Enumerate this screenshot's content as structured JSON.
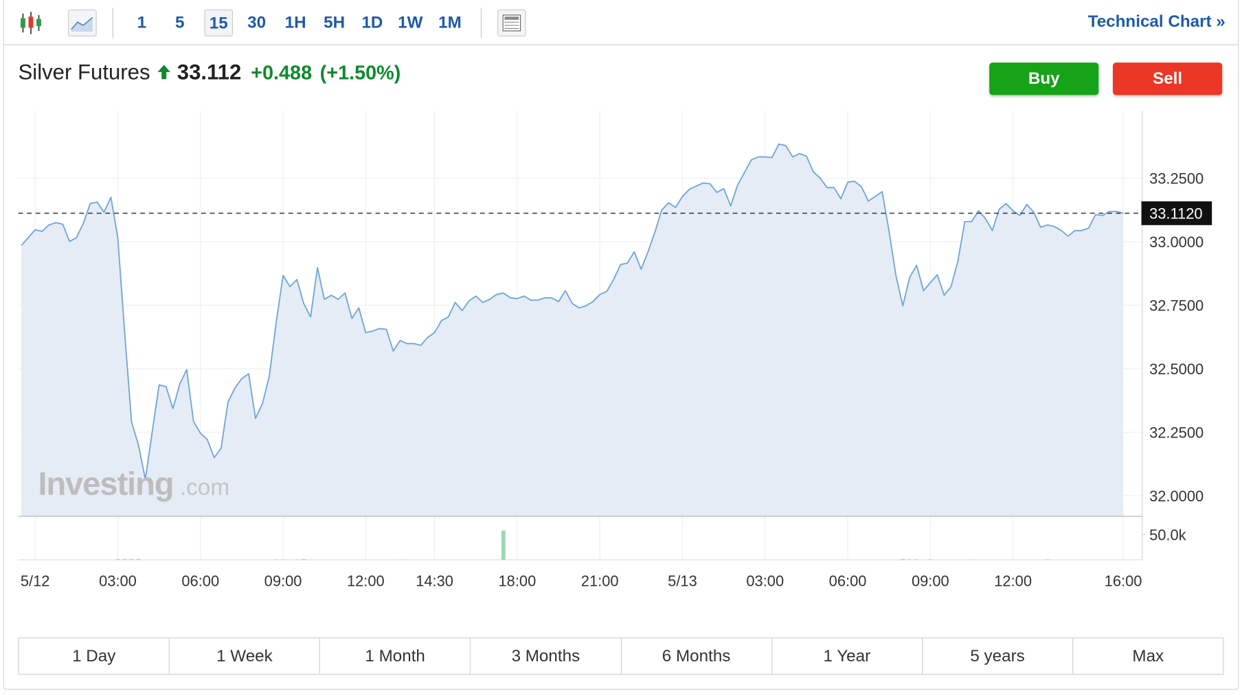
{
  "toolbar": {
    "intervals": [
      "1",
      "5",
      "15",
      "30",
      "1H",
      "5H",
      "1D",
      "1W",
      "1M"
    ],
    "technical_chart": "Technical Chart",
    "technical_chart_icon": "»"
  },
  "header": {
    "name": "Silver Futures",
    "price": "33.112",
    "change": "+0.488",
    "change_percent": "(+1.50%)"
  },
  "buttons": {
    "buy": "Buy",
    "sell": "Sell"
  },
  "watermark": {
    "brand": "Investing",
    "suffix": ".com"
  },
  "chart_data": {
    "type": "line",
    "categories": [
      null,
      null,
      "5/12",
      null,
      null,
      null,
      null,
      null,
      null,
      null,
      null,
      null,
      null,
      null,
      "03:00",
      null,
      null,
      null,
      null,
      null,
      null,
      null,
      null,
      null,
      null,
      null,
      "06:00",
      null,
      null,
      null,
      null,
      null,
      null,
      null,
      null,
      null,
      null,
      null,
      "09:00",
      null,
      null,
      null,
      null,
      null,
      null,
      null,
      null,
      null,
      null,
      null,
      "12:00",
      null,
      null,
      null,
      null,
      null,
      null,
      null,
      null,
      null,
      "14:30",
      null,
      null,
      null,
      null,
      null,
      null,
      null,
      null,
      null,
      null,
      null,
      "18:00",
      null,
      null,
      null,
      null,
      null,
      null,
      null,
      null,
      null,
      null,
      null,
      "21:00",
      null,
      null,
      null,
      null,
      null,
      null,
      null,
      null,
      null,
      null,
      null,
      "5/13",
      null,
      null,
      null,
      null,
      null,
      null,
      null,
      null,
      null,
      null,
      null,
      "03:00",
      null,
      null,
      null,
      null,
      null,
      null,
      null,
      null,
      null,
      null,
      null,
      "06:00",
      null,
      null,
      null,
      null,
      null,
      null,
      null,
      null,
      null,
      null,
      null,
      "09:00",
      null,
      null,
      null,
      null,
      null,
      null,
      null,
      null,
      null,
      null,
      null,
      "12:00",
      null,
      null,
      null,
      null,
      null,
      null,
      null,
      null,
      null,
      null,
      null,
      null,
      null,
      null,
      null,
      "16:00"
    ],
    "series": [
      {
        "color": "#6fa6d4",
        "values": [
          32.985,
          33.016,
          33.047,
          33.041,
          33.066,
          33.075,
          33.069,
          33.001,
          33.016,
          33.072,
          33.15,
          33.156,
          33.116,
          33.175,
          33.016,
          32.642,
          32.29,
          32.2,
          32.065,
          32.252,
          32.436,
          32.43,
          32.343,
          32.44,
          32.496,
          32.293,
          32.246,
          32.221,
          32.15,
          32.187,
          32.368,
          32.424,
          32.461,
          32.48,
          32.305,
          32.362,
          32.471,
          32.683,
          32.867,
          32.823,
          32.851,
          32.757,
          32.704,
          32.898,
          32.773,
          32.789,
          32.773,
          32.798,
          32.698,
          32.739,
          32.642,
          32.648,
          32.658,
          32.655,
          32.57,
          32.611,
          32.599,
          32.599,
          32.592,
          32.623,
          32.642,
          32.689,
          32.704,
          32.761,
          32.729,
          32.767,
          32.786,
          32.761,
          32.773,
          32.792,
          32.798,
          32.779,
          32.776,
          32.786,
          32.77,
          32.77,
          32.779,
          32.779,
          32.764,
          32.807,
          32.757,
          32.739,
          32.748,
          32.764,
          32.792,
          32.804,
          32.851,
          32.91,
          32.916,
          32.96,
          32.892,
          32.96,
          33.038,
          33.125,
          33.153,
          33.135,
          33.178,
          33.206,
          33.219,
          33.231,
          33.228,
          33.194,
          33.209,
          33.141,
          33.222,
          33.272,
          33.322,
          33.334,
          33.334,
          33.331,
          33.384,
          33.378,
          33.334,
          33.347,
          33.337,
          33.275,
          33.25,
          33.213,
          33.213,
          33.169,
          33.234,
          33.238,
          33.216,
          33.16,
          33.178,
          33.197,
          33.041,
          32.867,
          32.748,
          32.86,
          32.907,
          32.807,
          32.839,
          32.87,
          32.789,
          32.823,
          32.923,
          33.079,
          33.079,
          33.122,
          33.091,
          33.044,
          33.128,
          33.15,
          33.122,
          33.103,
          33.147,
          33.116,
          33.057,
          33.066,
          33.06,
          33.044,
          33.022,
          33.044,
          33.044,
          33.054,
          33.107,
          33.103,
          33.119,
          33.119,
          33.112
        ]
      }
    ],
    "ylim": [
      31.919,
      33.515
    ],
    "yticks": [
      {
        "value": 32.0,
        "label": "32.0000"
      },
      {
        "value": 32.25,
        "label": "32.2500"
      },
      {
        "value": 32.5,
        "label": "32.5000"
      },
      {
        "value": 32.75,
        "label": "32.7500"
      },
      {
        "value": 33.0,
        "label": "33.0000"
      },
      {
        "value": 33.25,
        "label": "33.2500"
      }
    ],
    "last_price": {
      "value": 33.112,
      "label": "33.1120"
    },
    "grid": true,
    "volume": {
      "ylim": [
        0,
        86000
      ],
      "yticks": [
        {
          "value": 50000,
          "label": "50.0k"
        }
      ],
      "values": [
        0,
        0,
        0,
        0,
        0,
        0,
        0,
        0,
        0,
        0,
        0,
        0,
        0,
        0,
        1500,
        1500,
        1500,
        1500,
        0,
        0,
        0,
        0,
        0,
        0,
        0,
        0,
        0,
        0,
        0,
        0,
        0,
        0,
        0,
        0,
        0,
        0,
        0,
        1200,
        1200,
        0,
        1200,
        1500,
        0,
        0,
        0,
        0,
        0,
        0,
        0,
        0,
        0,
        0,
        0,
        0,
        0,
        1000,
        0,
        0,
        0,
        0,
        0,
        0,
        0,
        0,
        0,
        0,
        0,
        0,
        0,
        0,
        58000,
        0,
        0,
        0,
        0,
        0,
        0,
        0,
        0,
        0,
        0,
        0,
        0,
        0,
        0,
        0,
        0,
        0,
        0,
        0,
        0,
        0,
        0,
        0,
        0,
        0,
        0,
        0,
        0,
        0,
        0,
        0,
        0,
        0,
        0,
        0,
        0,
        0,
        0,
        0,
        0,
        0,
        0,
        0,
        0,
        0,
        0,
        0,
        0,
        0,
        0,
        0,
        0,
        0,
        0,
        0,
        0,
        0,
        1500,
        1500,
        1500,
        0,
        1500,
        0,
        0,
        0,
        0,
        0,
        1000,
        0,
        0,
        0,
        0,
        0,
        0,
        0,
        0,
        0,
        0,
        1500,
        0,
        0,
        0,
        0,
        0,
        0,
        0,
        0,
        0,
        0,
        0
      ]
    }
  },
  "ranges": [
    "1 Day",
    "1 Week",
    "1 Month",
    "3 Months",
    "6 Months",
    "1 Year",
    "5 years",
    "Max"
  ]
}
